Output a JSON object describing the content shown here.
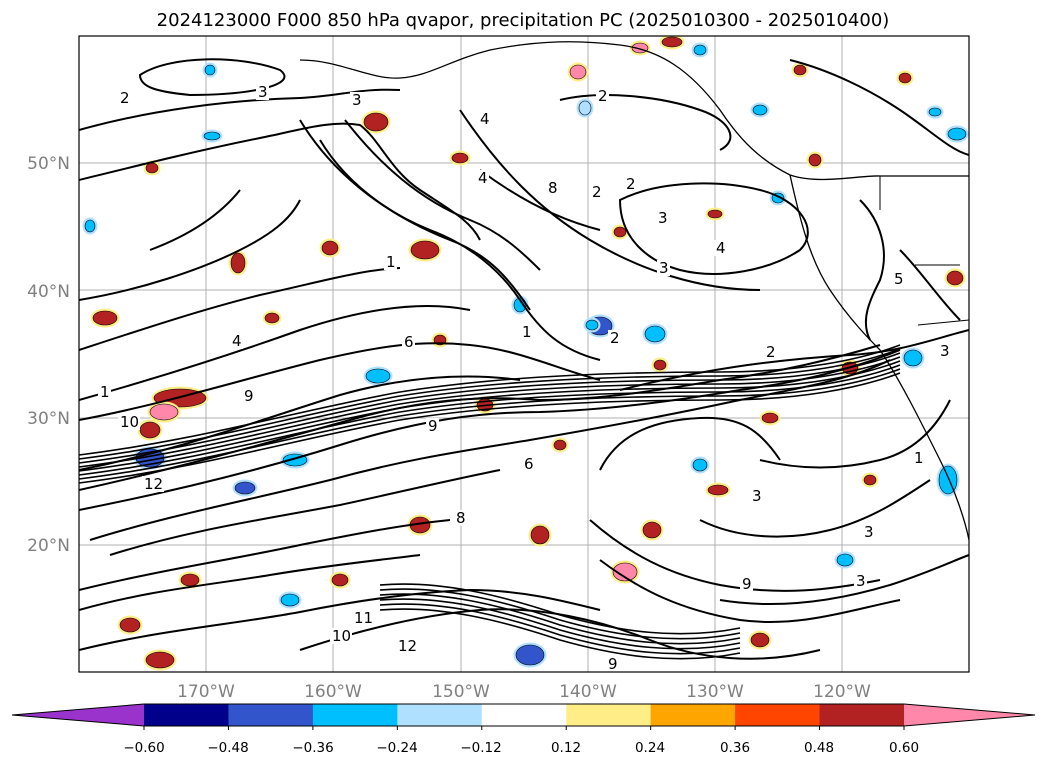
{
  "title": "2024123000 F000 850 hPa qvapor, precipitation PC (2025010300 - 2025010400)",
  "map": {
    "lon_ticks": [
      "170°W",
      "160°W",
      "150°W",
      "140°W",
      "130°W",
      "120°W"
    ],
    "lat_ticks": [
      "50°N",
      "40°N",
      "30°N",
      "20°N"
    ],
    "grid": true,
    "coastline_color": "#000000",
    "contour_color": "#000000",
    "contour_labels": [
      "2",
      "3",
      "3",
      "2",
      "4",
      "1",
      "6",
      "4",
      "10",
      "9",
      "8",
      "6",
      "9",
      "10",
      "12",
      "9",
      "3",
      "2",
      "2",
      "3",
      "3",
      "4",
      "1",
      "2",
      "5",
      "3",
      "1",
      "3",
      "9",
      "8",
      "4",
      "2",
      "12",
      "11",
      "1",
      "3"
    ]
  },
  "colorbar": {
    "colors": [
      "#9933cc",
      "#00008b",
      "#3355cc",
      "#00bfff",
      "#b0e0ff",
      "#ffffff",
      "#ffee88",
      "#ffa500",
      "#ff4500",
      "#b22222",
      "#ff88aa"
    ],
    "tick_labels": [
      "−0.60",
      "−0.48",
      "−0.36",
      "−0.24",
      "−0.12",
      "0.12",
      "0.24",
      "0.36",
      "0.48",
      "0.60"
    ]
  }
}
